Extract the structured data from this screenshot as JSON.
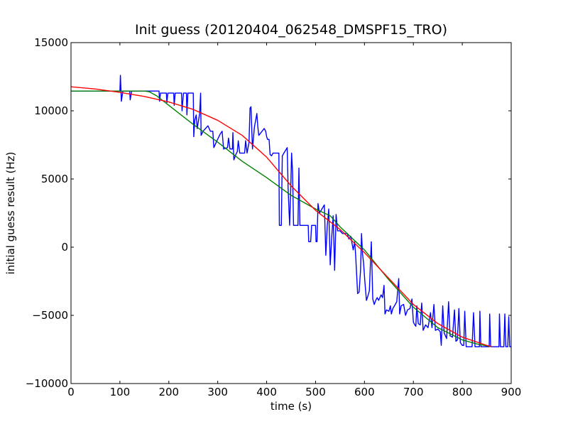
{
  "chart_data": {
    "type": "line",
    "title": "Init guess (20120404_062548_DMSPF15_TRO)",
    "xlabel": "time (s)",
    "ylabel": "initial guess result (Hz)",
    "xlim": [
      0,
      900
    ],
    "ylim": [
      -10000,
      15000
    ],
    "x_ticks": [
      0,
      100,
      200,
      300,
      400,
      500,
      600,
      700,
      800,
      900
    ],
    "y_ticks": [
      -10000,
      -5000,
      0,
      5000,
      10000,
      15000
    ],
    "x_tick_labels": [
      "0",
      "100",
      "200",
      "300",
      "400",
      "500",
      "600",
      "700",
      "800",
      "900"
    ],
    "y_tick_labels": [
      "−10000",
      "−5000",
      "0",
      "5000",
      "10000",
      "15000"
    ],
    "grid": false,
    "legend": "none",
    "series": [
      {
        "color": "#0000ff",
        "points": [
          [
            0,
            11450
          ],
          [
            100,
            11450
          ],
          [
            101,
            12600
          ],
          [
            103,
            10700
          ],
          [
            106,
            11450
          ],
          [
            120,
            11450
          ],
          [
            121,
            10800
          ],
          [
            124,
            11450
          ],
          [
            180,
            11450
          ],
          [
            181,
            10700
          ],
          [
            183,
            11300
          ],
          [
            195,
            11300
          ],
          [
            196,
            10600
          ],
          [
            198,
            11300
          ],
          [
            210,
            11300
          ],
          [
            211,
            10400
          ],
          [
            213,
            11300
          ],
          [
            226,
            11300
          ],
          [
            227,
            10000
          ],
          [
            230,
            11300
          ],
          [
            236,
            11300
          ],
          [
            237,
            9700
          ],
          [
            239,
            11300
          ],
          [
            250,
            11300
          ],
          [
            251,
            8100
          ],
          [
            253,
            9300
          ],
          [
            256,
            9700
          ],
          [
            258,
            8700
          ],
          [
            263,
            9800
          ],
          [
            265,
            11300
          ],
          [
            266,
            8200
          ],
          [
            270,
            8500
          ],
          [
            280,
            8900
          ],
          [
            285,
            8500
          ],
          [
            290,
            8500
          ],
          [
            292,
            7300
          ],
          [
            297,
            7700
          ],
          [
            305,
            8300
          ],
          [
            309,
            8500
          ],
          [
            312,
            7200
          ],
          [
            320,
            7300
          ],
          [
            322,
            8000
          ],
          [
            325,
            7200
          ],
          [
            330,
            7200
          ],
          [
            331,
            8400
          ],
          [
            333,
            6400
          ],
          [
            337,
            6800
          ],
          [
            340,
            7000
          ],
          [
            342,
            7800
          ],
          [
            345,
            6900
          ],
          [
            355,
            6900
          ],
          [
            357,
            7800
          ],
          [
            360,
            6900
          ],
          [
            364,
            7700
          ],
          [
            366,
            10200
          ],
          [
            368,
            10300
          ],
          [
            371,
            7200
          ],
          [
            375,
            8800
          ],
          [
            380,
            9800
          ],
          [
            382,
            8800
          ],
          [
            384,
            8200
          ],
          [
            395,
            8700
          ],
          [
            398,
            8500
          ],
          [
            400,
            8100
          ],
          [
            402,
            7900
          ],
          [
            405,
            7900
          ],
          [
            407,
            6800
          ],
          [
            410,
            6700
          ],
          [
            413,
            6900
          ],
          [
            418,
            6900
          ],
          [
            420,
            6900
          ],
          [
            425,
            6900
          ],
          [
            426,
            1600
          ],
          [
            430,
            1600
          ],
          [
            432,
            6700
          ],
          [
            437,
            7000
          ],
          [
            442,
            7300
          ],
          [
            444,
            4200
          ],
          [
            447,
            1600
          ],
          [
            449,
            3900
          ],
          [
            451,
            6900
          ],
          [
            453,
            5500
          ],
          [
            455,
            1600
          ],
          [
            460,
            1600
          ],
          [
            464,
            1600
          ],
          [
            466,
            5800
          ],
          [
            468,
            1600
          ],
          [
            470,
            1600
          ],
          [
            480,
            1600
          ],
          [
            485,
            1600
          ],
          [
            486,
            400
          ],
          [
            490,
            400
          ],
          [
            492,
            1600
          ],
          [
            498,
            1600
          ],
          [
            500,
            1600
          ],
          [
            501,
            400
          ],
          [
            503,
            400
          ],
          [
            505,
            3200
          ],
          [
            508,
            2500
          ],
          [
            513,
            2800
          ],
          [
            518,
            3100
          ],
          [
            521,
            -600
          ],
          [
            524,
            1600
          ],
          [
            527,
            2800
          ],
          [
            530,
            -1300
          ],
          [
            533,
            700
          ],
          [
            536,
            2300
          ],
          [
            539,
            -1700
          ],
          [
            542,
            2400
          ],
          [
            545,
            1200
          ],
          [
            550,
            1200
          ],
          [
            555,
            1000
          ],
          [
            560,
            1000
          ],
          [
            565,
            1000
          ],
          [
            568,
            600
          ],
          [
            572,
            800
          ],
          [
            577,
            -200
          ],
          [
            580,
            400
          ],
          [
            582,
            -600
          ],
          [
            586,
            -3400
          ],
          [
            589,
            -3300
          ],
          [
            592,
            -1700
          ],
          [
            594,
            1000
          ],
          [
            596,
            -500
          ],
          [
            598,
            -1100
          ],
          [
            601,
            -2600
          ],
          [
            604,
            -3900
          ],
          [
            606,
            -3700
          ],
          [
            610,
            -3200
          ],
          [
            614,
            400
          ],
          [
            617,
            -3800
          ],
          [
            620,
            -4200
          ],
          [
            623,
            -3900
          ],
          [
            626,
            -3700
          ],
          [
            629,
            -3900
          ],
          [
            634,
            -3500
          ],
          [
            637,
            -3700
          ],
          [
            640,
            -2800
          ],
          [
            642,
            -4900
          ],
          [
            645,
            -4600
          ],
          [
            650,
            -4700
          ],
          [
            653,
            -4300
          ],
          [
            655,
            -4900
          ],
          [
            658,
            -4500
          ],
          [
            663,
            -4200
          ],
          [
            666,
            -4000
          ],
          [
            670,
            -2300
          ],
          [
            672,
            -4900
          ],
          [
            675,
            -4300
          ],
          [
            680,
            -4200
          ],
          [
            684,
            -5000
          ],
          [
            688,
            -4600
          ],
          [
            693,
            -4500
          ],
          [
            697,
            -3800
          ],
          [
            700,
            -5500
          ],
          [
            703,
            -5700
          ],
          [
            705,
            -5800
          ],
          [
            707,
            -4300
          ],
          [
            710,
            -5600
          ],
          [
            714,
            -5700
          ],
          [
            717,
            -4100
          ],
          [
            720,
            -6100
          ],
          [
            725,
            -5700
          ],
          [
            730,
            -5900
          ],
          [
            735,
            -4800
          ],
          [
            738,
            -5900
          ],
          [
            742,
            -4200
          ],
          [
            745,
            -6100
          ],
          [
            750,
            -6000
          ],
          [
            755,
            -6200
          ],
          [
            757,
            -7200
          ],
          [
            760,
            -4300
          ],
          [
            763,
            -6300
          ],
          [
            768,
            -6700
          ],
          [
            772,
            -4000
          ],
          [
            775,
            -6500
          ],
          [
            780,
            -6600
          ],
          [
            784,
            -4600
          ],
          [
            787,
            -6900
          ],
          [
            790,
            -6800
          ],
          [
            793,
            -4500
          ],
          [
            796,
            -7000
          ],
          [
            800,
            -7200
          ],
          [
            803,
            -7200
          ],
          [
            805,
            -4700
          ],
          [
            808,
            -7300
          ],
          [
            815,
            -7300
          ],
          [
            820,
            -7300
          ],
          [
            823,
            -4800
          ],
          [
            826,
            -7300
          ],
          [
            830,
            -7300
          ],
          [
            835,
            -7300
          ],
          [
            836,
            -4700
          ],
          [
            838,
            -7300
          ],
          [
            850,
            -7300
          ],
          [
            855,
            -7300
          ],
          [
            856,
            -4900
          ],
          [
            858,
            -7300
          ],
          [
            870,
            -7300
          ],
          [
            875,
            -7300
          ],
          [
            876,
            -4900
          ],
          [
            878,
            -7300
          ],
          [
            885,
            -7300
          ],
          [
            887,
            -4900
          ],
          [
            889,
            -7300
          ],
          [
            893,
            -7300
          ],
          [
            895,
            -5100
          ],
          [
            897,
            -7300
          ],
          [
            900,
            -7300
          ]
        ]
      },
      {
        "color": "#008000",
        "points": [
          [
            0,
            11450
          ],
          [
            100,
            11450
          ],
          [
            150,
            11450
          ],
          [
            160,
            11400
          ],
          [
            175,
            11100
          ],
          [
            200,
            10400
          ],
          [
            250,
            9000
          ],
          [
            300,
            7700
          ],
          [
            350,
            6300
          ],
          [
            400,
            5100
          ],
          [
            450,
            3800
          ],
          [
            500,
            2800
          ],
          [
            530,
            2300
          ],
          [
            550,
            1500
          ],
          [
            600,
            -200
          ],
          [
            650,
            -2400
          ],
          [
            700,
            -4400
          ],
          [
            750,
            -5900
          ],
          [
            800,
            -6800
          ],
          [
            830,
            -7100
          ],
          [
            860,
            -7300
          ]
        ]
      },
      {
        "color": "#ff0000",
        "points": [
          [
            0,
            11760
          ],
          [
            50,
            11600
          ],
          [
            100,
            11350
          ],
          [
            150,
            11050
          ],
          [
            200,
            10650
          ],
          [
            250,
            10100
          ],
          [
            300,
            9300
          ],
          [
            350,
            8200
          ],
          [
            400,
            6600
          ],
          [
            450,
            4500
          ],
          [
            500,
            2700
          ],
          [
            550,
            1300
          ],
          [
            600,
            -400
          ],
          [
            650,
            -2300
          ],
          [
            700,
            -4200
          ],
          [
            750,
            -5600
          ],
          [
            800,
            -6600
          ],
          [
            850,
            -7200
          ],
          [
            860,
            -7300
          ]
        ]
      }
    ]
  }
}
